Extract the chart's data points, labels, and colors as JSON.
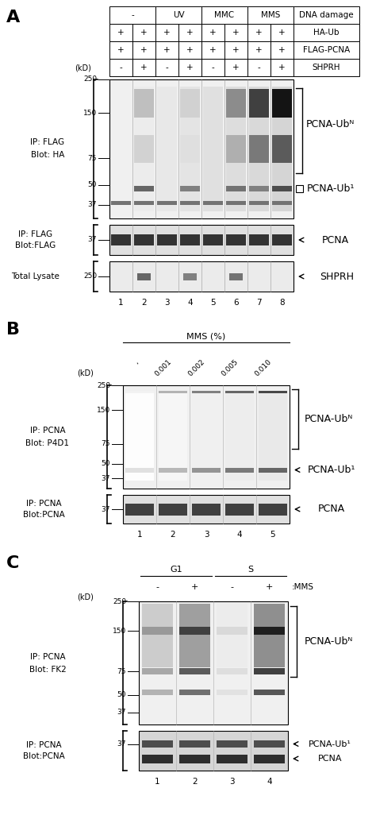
{
  "fig_width": 4.74,
  "fig_height": 10.36,
  "bg_color": "#ffffff",
  "panel_A": {
    "label": "A",
    "table_col_labels": [
      "-",
      "-",
      "UV",
      "UV",
      "MMC",
      "MMC",
      "MMS",
      "MMS"
    ],
    "group_headers": [
      [
        "-",
        0,
        2
      ],
      [
        "UV",
        2,
        4
      ],
      [
        "MMC",
        4,
        6
      ],
      [
        "MMS",
        6,
        8
      ]
    ],
    "row_labels": [
      "HA-Ub",
      "FLAG-PCNA",
      "SHPRH"
    ],
    "row_data": [
      [
        "+",
        "+",
        "+",
        "+",
        "+",
        "+",
        "+",
        "+"
      ],
      [
        "+",
        "+",
        "+",
        "+",
        "+",
        "+",
        "+",
        "+"
      ],
      [
        "-",
        "+",
        "-",
        "+",
        "-",
        "+",
        "-",
        "+"
      ]
    ],
    "markers_blot1": [
      250,
      150,
      75,
      50,
      37
    ],
    "marker_blot2": 37,
    "marker_blot3": 250,
    "lane_labels": [
      "1",
      "2",
      "3",
      "4",
      "5",
      "6",
      "7",
      "8"
    ]
  },
  "panel_B": {
    "label": "B",
    "mms_header": "MMS (%)",
    "lane_labels_top": [
      ".",
      "·0.001",
      "·0.002",
      "·0.005",
      "·0.010"
    ],
    "lane_labels_top_display": [
      ",",
      "0.001",
      "0.002",
      "0.005",
      "0.010"
    ],
    "markers_blot1": [
      250,
      150,
      75,
      50,
      37
    ],
    "marker_blot2": 37,
    "lane_labels": [
      "1",
      "2",
      "3",
      "4",
      "5"
    ]
  },
  "panel_C": {
    "label": "C",
    "g1_header": "G1",
    "s_header": "S",
    "lane_signs": [
      "-",
      "+",
      "-",
      "+"
    ],
    "markers_blot1": [
      250,
      150,
      75,
      50,
      37
    ],
    "marker_blot2": 37,
    "lane_labels": [
      "1",
      "2",
      "3",
      "4"
    ]
  }
}
